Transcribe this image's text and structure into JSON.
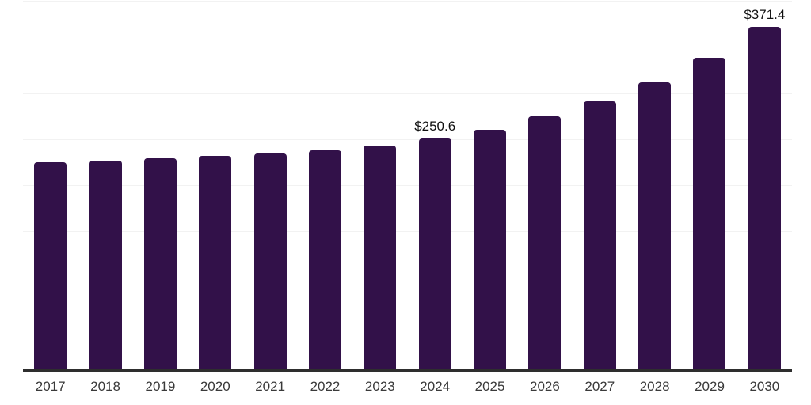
{
  "chart_data": {
    "type": "bar",
    "title": "",
    "xlabel": "",
    "ylabel": "",
    "categories": [
      "2017",
      "2018",
      "2019",
      "2020",
      "2021",
      "2022",
      "2023",
      "2024",
      "2025",
      "2026",
      "2027",
      "2028",
      "2029",
      "2030"
    ],
    "values": [
      224.7,
      226.3,
      229.5,
      232.0,
      234.2,
      238.0,
      243.0,
      250.6,
      260.3,
      274.3,
      290.8,
      312.0,
      338.5,
      371.4
    ],
    "data_labels": {
      "2024": "$250.6",
      "2030": "$371.4"
    },
    "ylim": [
      0,
      400
    ],
    "gridline_step": 50,
    "grid": true,
    "legend": "none",
    "colors": {
      "bar": "#321149",
      "gridline": "#f2f2f2",
      "axis": "#2e2e2e",
      "tick_label": "#3a3a3a",
      "data_label": "#111111"
    }
  }
}
